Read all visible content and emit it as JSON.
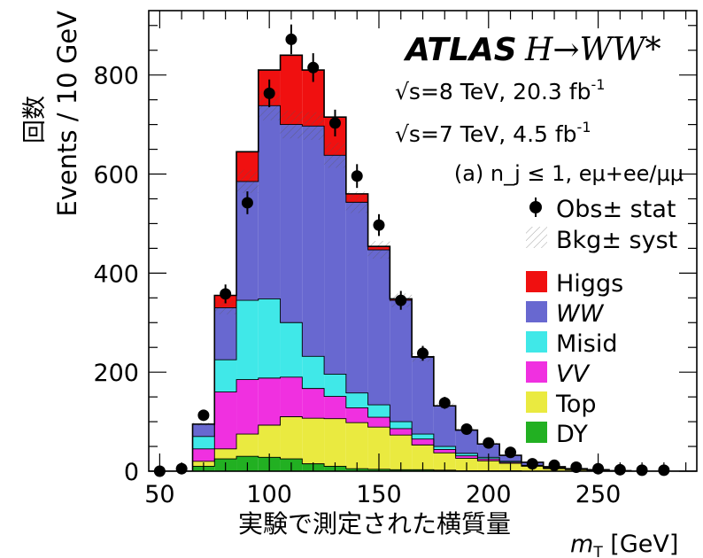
{
  "chart_data": {
    "type": "bar",
    "stacked": true,
    "bin_width": 10,
    "x_edges": [
      45,
      55,
      65,
      75,
      85,
      95,
      105,
      115,
      125,
      135,
      145,
      155,
      165,
      175,
      185,
      195,
      205,
      215,
      225,
      235,
      245,
      255,
      265,
      275,
      285,
      295
    ],
    "xlim": [
      45,
      295
    ],
    "ylim": [
      0,
      930
    ],
    "x_ticks": [
      50,
      100,
      150,
      200,
      250
    ],
    "y_ticks": [
      0,
      200,
      400,
      600,
      800
    ],
    "x_tick_labels": [
      "50",
      "100",
      "150",
      "200",
      "250"
    ],
    "y_tick_labels": [
      "0",
      "200",
      "400",
      "600",
      "800"
    ],
    "xlabel": "実験で測定された横質量",
    "xlabel_unit": "m_T [GeV]",
    "ylabel": "Events / 10 GeV",
    "ylabel_jp": "回数",
    "annotations": {
      "experiment": "ATLAS",
      "process": "H→WW*",
      "line1_pre": "√s",
      "line1_post": "=8 TeV, 20.3 fb",
      "line1_sup": "-1",
      "line2_pre": "√s",
      "line2_post": "=7 TeV, 4.5 fb",
      "line2_sup": "-1",
      "line3": "(a) n_j ≤ 1, eμ+ee/μμ"
    },
    "series": [
      {
        "name": "DY",
        "color": "#22b022",
        "values": [
          0,
          0,
          10,
          25,
          30,
          28,
          25,
          15,
          10,
          5,
          4,
          3,
          3,
          2,
          1,
          1,
          1,
          0,
          0,
          0,
          0,
          0,
          0,
          0,
          0
        ]
      },
      {
        "name": "Top",
        "color": "#eaea40",
        "values": [
          0,
          0,
          10,
          20,
          45,
          65,
          85,
          92,
          96,
          93,
          85,
          70,
          50,
          35,
          25,
          20,
          15,
          10,
          5,
          3,
          2,
          1,
          0,
          0,
          0
        ]
      },
      {
        "name": "VV",
        "color": "#f030e0",
        "values": [
          0,
          0,
          25,
          115,
          110,
          95,
          80,
          60,
          45,
          30,
          20,
          13,
          12,
          7,
          5,
          4,
          2,
          1,
          1,
          1,
          0,
          0,
          0,
          0,
          0
        ]
      },
      {
        "name": "Misid",
        "color": "#40e8e8",
        "values": [
          0,
          0,
          25,
          65,
          160,
          160,
          110,
          65,
          45,
          30,
          25,
          14,
          10,
          6,
          5,
          3,
          2,
          1,
          1,
          0,
          0,
          0,
          0,
          0,
          0
        ]
      },
      {
        "name": "WW",
        "color": "#6868d0",
        "values": [
          0,
          0,
          25,
          105,
          240,
          390,
          400,
          465,
          442,
          385,
          313,
          245,
          155,
          82,
          47,
          27,
          12,
          6,
          2,
          1,
          1,
          0,
          0,
          0,
          0
        ]
      },
      {
        "name": "Higgs",
        "color": "#f01010",
        "values": [
          0,
          0,
          0,
          25,
          60,
          72,
          140,
          113,
          77,
          17,
          7,
          3,
          1,
          0,
          0,
          0,
          0,
          0,
          0,
          0,
          0,
          0,
          0,
          0,
          0
        ]
      }
    ],
    "observed": {
      "name": "Obs ± stat",
      "x": [
        50,
        60,
        70,
        80,
        90,
        100,
        110,
        120,
        130,
        140,
        150,
        160,
        170,
        180,
        190,
        200,
        210,
        220,
        230,
        240,
        250,
        260,
        270,
        280
      ],
      "y": [
        0,
        5,
        113,
        358,
        542,
        763,
        872,
        815,
        703,
        596,
        497,
        345,
        238,
        138,
        85,
        57,
        38,
        15,
        12,
        8,
        5,
        3,
        2,
        2
      ],
      "err": [
        0,
        2,
        11,
        19,
        23,
        28,
        30,
        29,
        27,
        24,
        22,
        19,
        15,
        12,
        9,
        8,
        6,
        4,
        3,
        3,
        2,
        2,
        1,
        1
      ]
    },
    "legend": {
      "placement": "right",
      "obs_label": "Obs",
      "obs_suffix": "± stat",
      "bkg_label": "Bkg",
      "bkg_suffix": "± syst",
      "entries": [
        "Higgs",
        "WW",
        "Misid",
        "VV",
        "Top",
        "DY"
      ]
    }
  }
}
